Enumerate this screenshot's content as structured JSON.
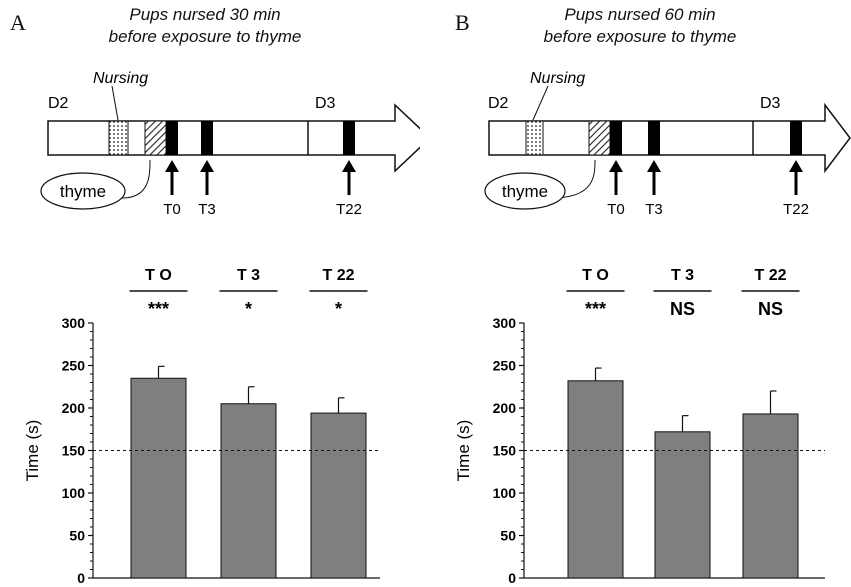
{
  "panels": [
    {
      "letter": "A",
      "condition_lines": [
        "Pups nursed 30 min",
        "before exposure to thyme"
      ],
      "timeline": {
        "day_start": "D2",
        "day_end": "D3",
        "nursing_label": "Nursing",
        "odor_label": "thyme",
        "test_labels": [
          "T0",
          "T3",
          "T22"
        ]
      }
    },
    {
      "letter": "B",
      "condition_lines": [
        "Pups nursed 60 min",
        "before exposure to thyme"
      ],
      "timeline": {
        "day_start": "D2",
        "day_end": "D3",
        "nursing_label": "Nursing",
        "odor_label": "thyme",
        "test_labels": [
          "T0",
          "T3",
          "T22"
        ]
      }
    }
  ],
  "chart_data": [
    {
      "type": "bar",
      "categories": [
        "T O",
        "T 3",
        "T 22"
      ],
      "values": [
        235,
        205,
        194
      ],
      "errors": [
        14,
        20,
        18
      ],
      "significance": [
        "***",
        "*",
        "*"
      ],
      "ylabel": "Time (s)",
      "ylim": [
        0,
        300
      ],
      "yticks": [
        0,
        50,
        100,
        150,
        200,
        250,
        300
      ],
      "reference_line": 150,
      "bar_color": "#7f7f7f"
    },
    {
      "type": "bar",
      "categories": [
        "T O",
        "T 3",
        "T 22"
      ],
      "values": [
        232,
        172,
        193
      ],
      "errors": [
        15,
        19,
        27
      ],
      "significance": [
        "***",
        "NS",
        "NS"
      ],
      "ylabel": "Time (s)",
      "ylim": [
        0,
        300
      ],
      "yticks": [
        0,
        50,
        100,
        150,
        200,
        250,
        300
      ],
      "reference_line": 150,
      "bar_color": "#7f7f7f"
    }
  ]
}
